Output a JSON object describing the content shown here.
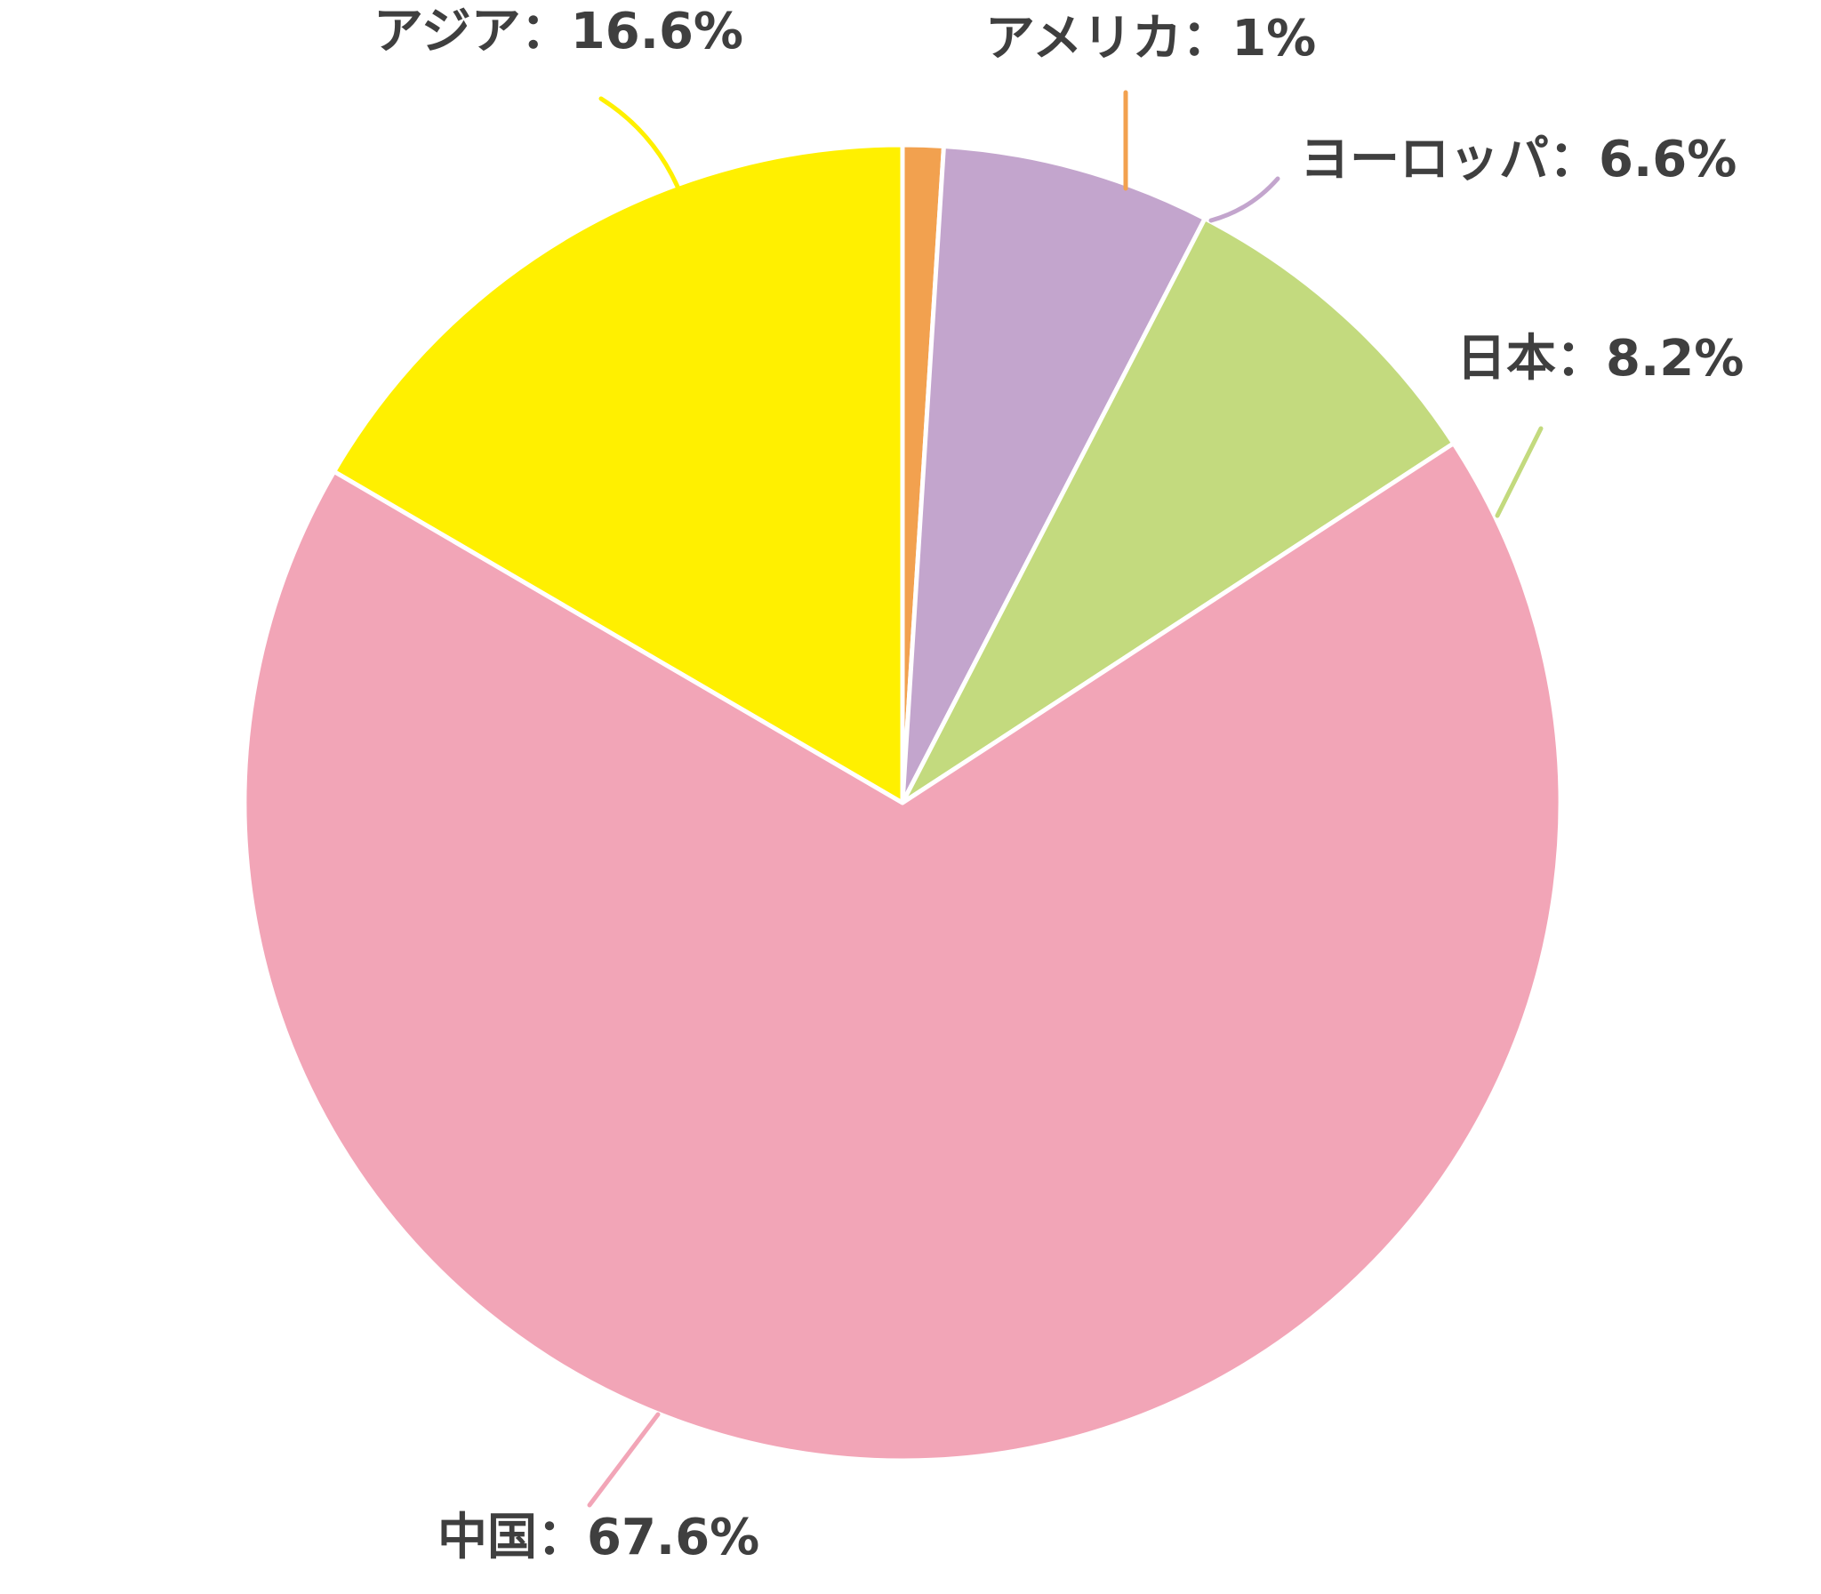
{
  "chart_data": {
    "type": "pie",
    "title": "",
    "unit": "%",
    "start_angle_deg": 0,
    "direction": "clockwise",
    "legend": "none",
    "slices": [
      {
        "name": "アメリカ",
        "value": 1,
        "label": "アメリカ：1%",
        "color": "#f2a14f"
      },
      {
        "name": "ヨーロッパ",
        "value": 6.6,
        "label": "ヨーロッパ：6.6%",
        "color": "#c3a5cd"
      },
      {
        "name": "日本",
        "value": 8.2,
        "label": "日本：8.2%",
        "color": "#c3da7e"
      },
      {
        "name": "中国",
        "value": 67.6,
        "label": "中国：67.6%",
        "color": "#f2a5b7"
      },
      {
        "name": "アジア",
        "value": 16.6,
        "label": "アジア：16.6%",
        "color": "#fff000"
      }
    ]
  }
}
